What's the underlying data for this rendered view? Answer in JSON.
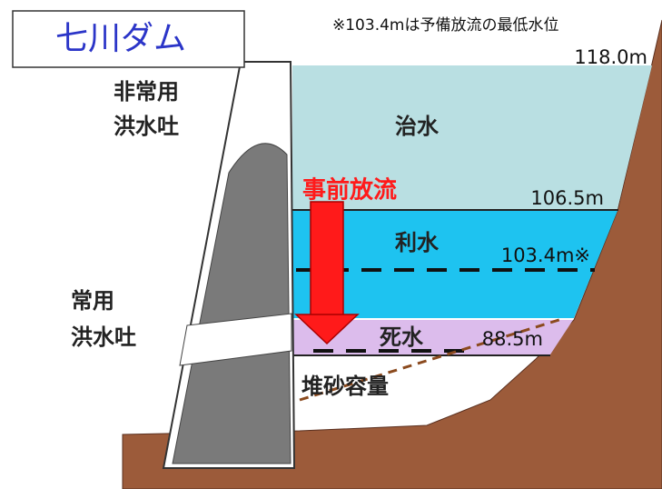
{
  "title": "七川ダム",
  "note": "※103.4mは予備放流の最低水位",
  "levels": {
    "top": "118.0m",
    "flood": "106.5m",
    "reserve": "103.4m※",
    "dead": "88.5m"
  },
  "zones": {
    "flood_control": "治水",
    "water_use": "利水",
    "dead_water": "死水",
    "sediment": "堆砂容量"
  },
  "arrow": "事前放流",
  "spillways": {
    "emergency": [
      "非常用",
      "洪水吐"
    ],
    "regular": [
      "常用",
      "洪水吐"
    ]
  }
}
